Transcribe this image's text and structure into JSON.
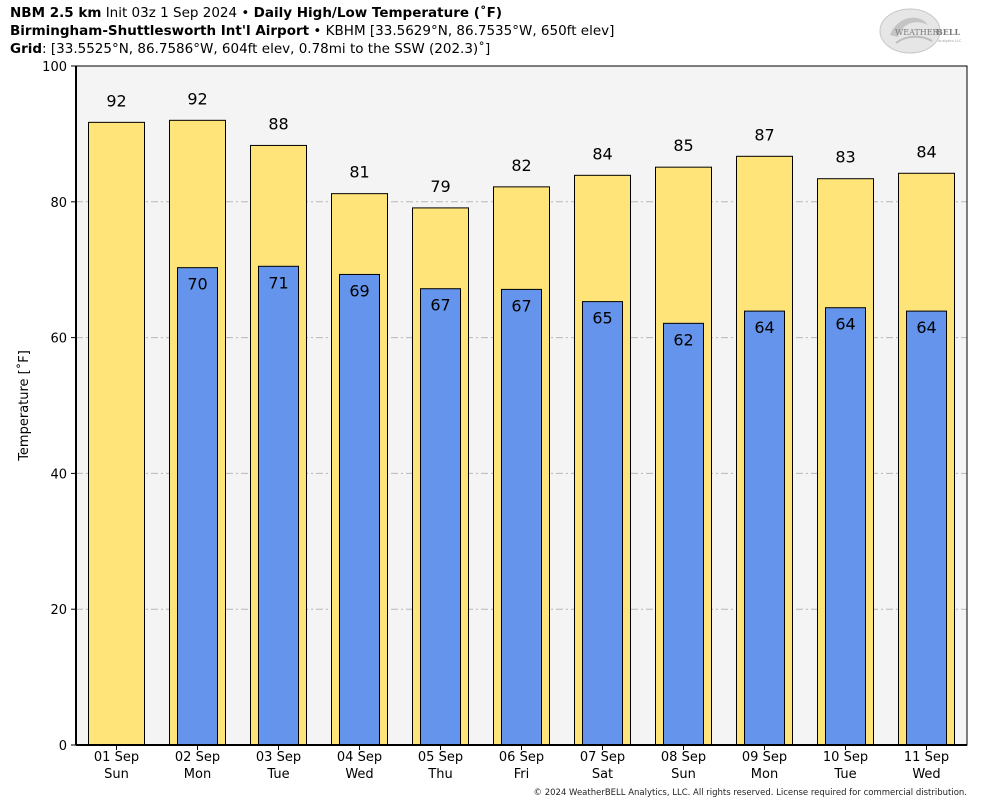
{
  "header": {
    "model": "NBM 2.5 km",
    "init": "Init 03z 1 Sep 2024",
    "bullet": "•",
    "product": "Daily High/Low Temperature (˚F)",
    "station_name": "Birmingham-Shuttlesworth Int'l Airport",
    "station_info": "KBHM [33.5629°N, 86.7535°W, 650ft elev]",
    "grid_label": "Grid",
    "grid_info": ": [33.5525°N, 86.7586°W, 604ft elev, 0.78mi to the SSW (202.3)˚]"
  },
  "logo": {
    "text_weather": "WEATHER",
    "text_bell": "BELL",
    "sub": "Analytics LLC"
  },
  "footer": {
    "copyright": "© 2024 WeatherBELL Analytics, LLC. All rights reserved. License required for commercial distribution."
  },
  "colors": {
    "high": "#ffe47a",
    "low": "#6494eb",
    "plot_bg": "#f4f4f4",
    "grid": "#b8b8b8"
  },
  "chart_data": {
    "type": "bar",
    "ylabel": "Temperature [˚F]",
    "ylim": [
      0,
      100
    ],
    "yticks": [
      0,
      20,
      40,
      60,
      80,
      100
    ],
    "grid": true,
    "categories": [
      {
        "date": "01 Sep",
        "day": "Sun"
      },
      {
        "date": "02 Sep",
        "day": "Mon"
      },
      {
        "date": "03 Sep",
        "day": "Tue"
      },
      {
        "date": "04 Sep",
        "day": "Wed"
      },
      {
        "date": "05 Sep",
        "day": "Thu"
      },
      {
        "date": "06 Sep",
        "day": "Fri"
      },
      {
        "date": "07 Sep",
        "day": "Sat"
      },
      {
        "date": "08 Sep",
        "day": "Sun"
      },
      {
        "date": "09 Sep",
        "day": "Mon"
      },
      {
        "date": "10 Sep",
        "day": "Tue"
      },
      {
        "date": "11 Sep",
        "day": "Wed"
      }
    ],
    "series": [
      {
        "key": "high",
        "values": [
          91.7,
          92.0,
          88.3,
          81.2,
          79.1,
          82.2,
          83.9,
          85.1,
          86.7,
          83.4,
          84.2
        ],
        "labels": [
          "92",
          "92",
          "88",
          "81",
          "79",
          "82",
          "84",
          "85",
          "87",
          "83",
          "84"
        ]
      },
      {
        "key": "low",
        "values": [
          null,
          70.3,
          70.5,
          69.3,
          67.2,
          67.1,
          65.3,
          62.1,
          63.9,
          64.4,
          63.9
        ],
        "labels": [
          "",
          "70",
          "71",
          "69",
          "67",
          "67",
          "65",
          "62",
          "64",
          "64",
          "64"
        ]
      }
    ]
  }
}
